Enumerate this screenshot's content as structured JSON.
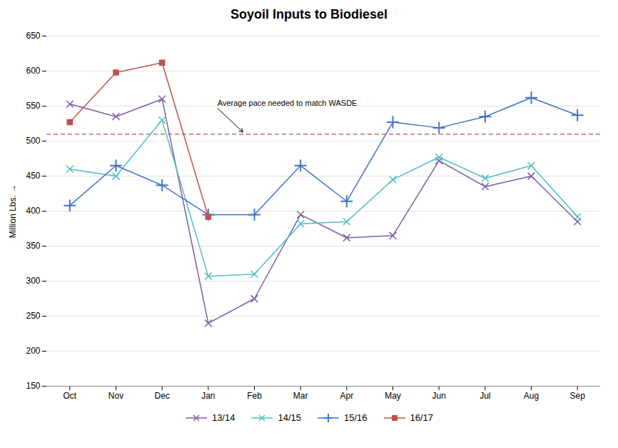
{
  "chart_data": {
    "type": "line",
    "title": "Soyoil Inputs to Biodiesel",
    "ylabel": "Million Lbs.",
    "categories": [
      "Oct",
      "Nov",
      "Dec",
      "Jan",
      "Feb",
      "Mar",
      "Apr",
      "May",
      "Jun",
      "Jul",
      "Aug",
      "Sep"
    ],
    "series": [
      {
        "name": "13/14",
        "color": "#7B5EA7",
        "marker": "x",
        "values": [
          553,
          535,
          560,
          240,
          275,
          395,
          362,
          365,
          472,
          435,
          450,
          385
        ]
      },
      {
        "name": "14/15",
        "color": "#4BBFBF",
        "marker": "x",
        "values": [
          460,
          450,
          530,
          307,
          310,
          382,
          385,
          445,
          477,
          447,
          465,
          392
        ]
      },
      {
        "name": "15/16",
        "color": "#4472C4",
        "marker": "+",
        "values": [
          408,
          465,
          437,
          395,
          395,
          465,
          414,
          527,
          519,
          535,
          562,
          537
        ]
      },
      {
        "name": "16/17",
        "color": "#C0504D",
        "marker": "s",
        "values": [
          527,
          598,
          612,
          392,
          null,
          null,
          null,
          null,
          null,
          null,
          null,
          null
        ]
      }
    ],
    "reference_line": {
      "value": 510,
      "color": "#C0504D",
      "line_style": "dashed"
    },
    "annotations": [
      {
        "text": "Average pace needed to match WASDE",
        "x": 3.2,
        "y": 547,
        "arrow_x": 3.75,
        "arrow_y": 513
      }
    ],
    "ylim": [
      150,
      650
    ],
    "yticks": [
      150,
      200,
      250,
      300,
      350,
      400,
      450,
      500,
      550,
      600,
      650
    ],
    "grid": true,
    "legend": "bottom"
  }
}
